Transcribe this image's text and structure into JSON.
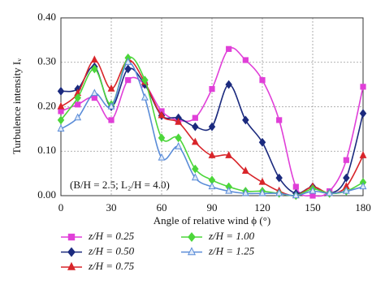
{
  "chart_data": {
    "type": "line",
    "x_label": "Angle of relative wind ϕ (°)",
    "y_label": "Turbulence intensity Iᵥ",
    "annotation": "(B/H = 2.5; L₂/H = 4.0)",
    "x": [
      0,
      10,
      20,
      30,
      40,
      50,
      60,
      70,
      80,
      90,
      100,
      110,
      120,
      130,
      140,
      150,
      160,
      170,
      180
    ],
    "xlim": [
      0,
      180
    ],
    "xticks": [
      0,
      30,
      60,
      90,
      120,
      150,
      180
    ],
    "ylim": [
      0,
      0.4
    ],
    "yticks": [
      {
        "value": 0,
        "label": "0.00"
      },
      {
        "value": 0.1,
        "label": "0.10"
      },
      {
        "value": 0.2,
        "label": "0.20"
      },
      {
        "value": 0.3,
        "label": "0.30"
      },
      {
        "value": 0.4,
        "label": "0.40"
      }
    ],
    "grid": true,
    "series": [
      {
        "name": "z/H = 0.25",
        "color": "#e03fd8",
        "marker": "square",
        "values": [
          0.19,
          0.205,
          0.22,
          0.17,
          0.26,
          0.25,
          0.19,
          0.17,
          0.175,
          0.24,
          0.33,
          0.305,
          0.26,
          0.17,
          0.02,
          0.0,
          0.01,
          0.08,
          0.245
        ]
      },
      {
        "name": "z/H = 0.50",
        "color": "#1b2a7e",
        "marker": "diamond",
        "values": [
          0.235,
          0.24,
          0.29,
          0.2,
          0.285,
          0.25,
          0.18,
          0.175,
          0.155,
          0.155,
          0.25,
          0.17,
          0.12,
          0.04,
          0.005,
          0.02,
          0.005,
          0.04,
          0.185
        ]
      },
      {
        "name": "z/H = 0.75",
        "color": "#d8252a",
        "marker": "triangle",
        "values": [
          0.2,
          0.23,
          0.305,
          0.24,
          0.305,
          0.255,
          0.18,
          0.165,
          0.12,
          0.09,
          0.09,
          0.055,
          0.03,
          0.01,
          0.0,
          0.02,
          0.005,
          0.02,
          0.09
        ]
      },
      {
        "name": "z/H = 1.00",
        "color": "#4cd63a",
        "marker": "diamond",
        "values": [
          0.17,
          0.22,
          0.285,
          0.205,
          0.31,
          0.26,
          0.13,
          0.13,
          0.06,
          0.035,
          0.02,
          0.01,
          0.01,
          0.005,
          0.0,
          0.015,
          0.005,
          0.01,
          0.03
        ]
      },
      {
        "name": "z/H = 1.25",
        "color": "#5a8cd8",
        "marker": "triangle",
        "values": [
          0.15,
          0.175,
          0.23,
          0.2,
          0.3,
          0.22,
          0.085,
          0.11,
          0.04,
          0.02,
          0.01,
          0.005,
          0.005,
          0.005,
          0.0,
          0.01,
          0.005,
          0.01,
          0.02
        ]
      }
    ]
  }
}
